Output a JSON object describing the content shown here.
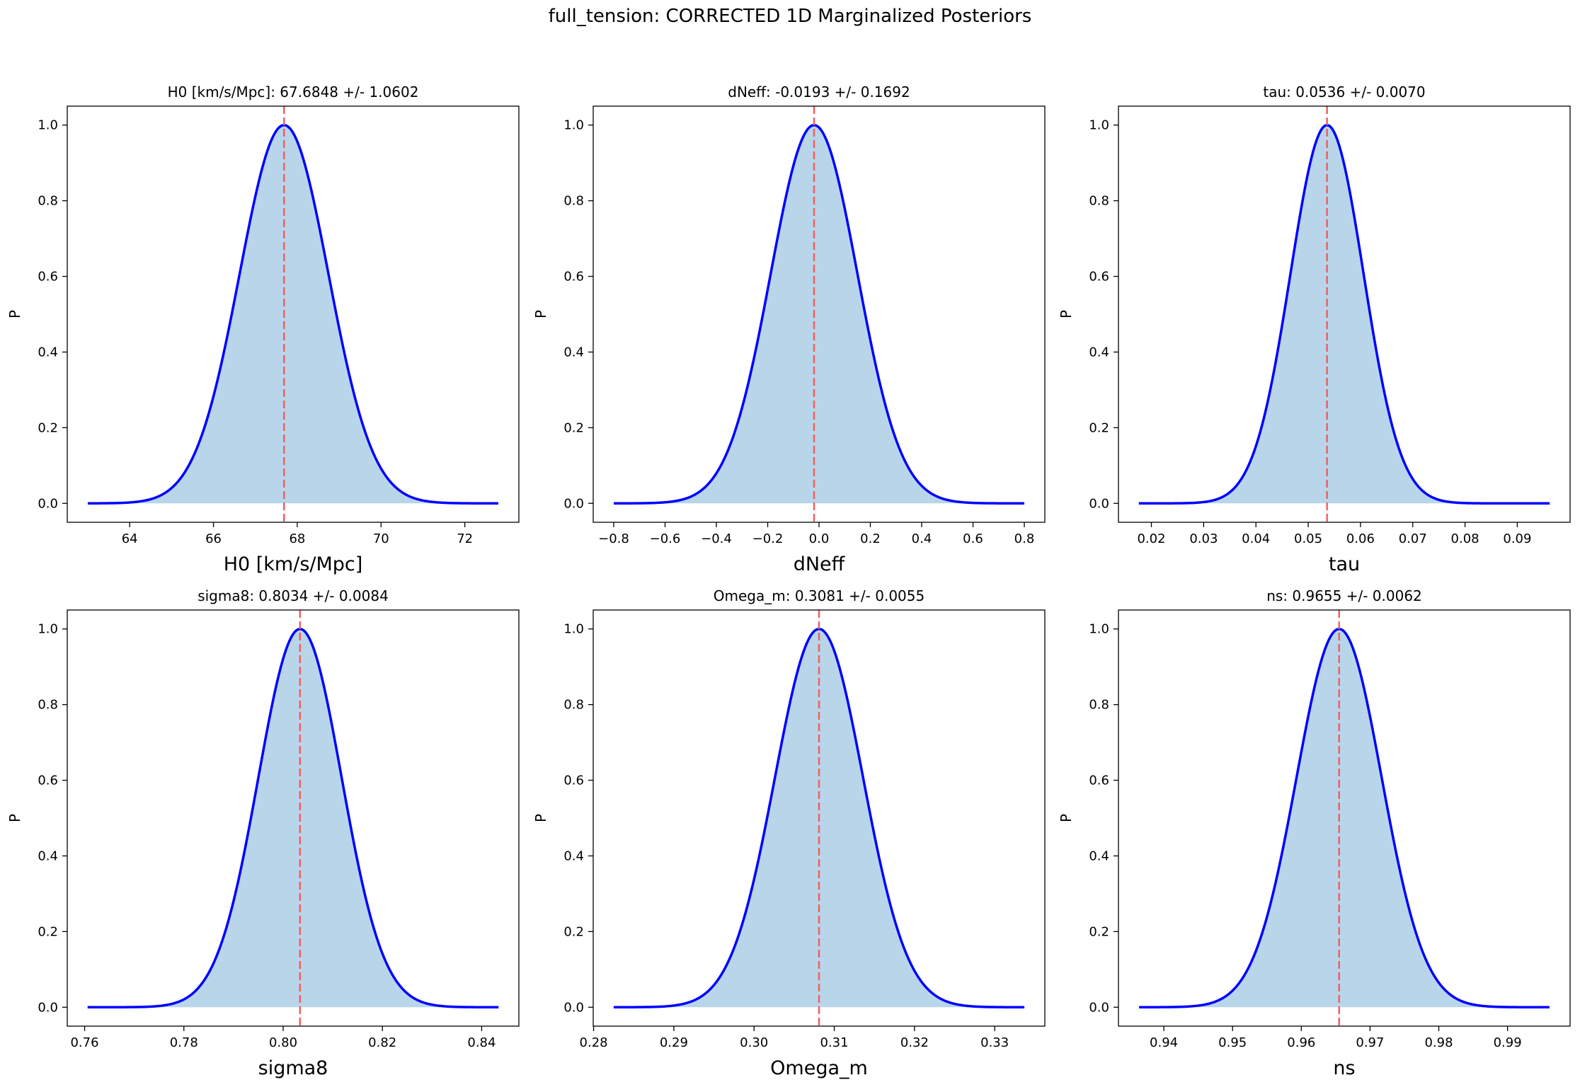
{
  "figure_title": "full_tension: CORRECTED 1D Marginalized Posteriors",
  "colors": {
    "curve": "#0000ff",
    "fill": "#b9d5ea",
    "mean_line": "#f06060",
    "axis": "#000000"
  },
  "chart_data": [
    {
      "type": "area",
      "title": "H0 [km/s/Mpc]: 67.6848 +/- 1.0602",
      "xlabel": "H0 [km/s/Mpc]",
      "ylabel": "P",
      "mean": 67.6848,
      "sigma": 1.0602,
      "x_range": [
        63.0,
        72.8
      ],
      "xlim": [
        62.51,
        73.29
      ],
      "ylim": [
        -0.05,
        1.05
      ],
      "xticks": [
        64,
        66,
        68,
        70,
        72
      ],
      "xtick_labels": [
        "64",
        "66",
        "68",
        "70",
        "72"
      ],
      "yticks": [
        0.0,
        0.2,
        0.4,
        0.6,
        0.8,
        1.0
      ],
      "ytick_labels": [
        "0.0",
        "0.2",
        "0.4",
        "0.6",
        "0.8",
        "1.0"
      ]
    },
    {
      "type": "area",
      "title": "dNeff: -0.0193 +/- 0.1692",
      "xlabel": "dNeff",
      "ylabel": "P",
      "mean": -0.0193,
      "sigma": 0.1692,
      "x_range": [
        -0.8,
        0.8
      ],
      "xlim": [
        -0.88,
        0.88
      ],
      "ylim": [
        -0.05,
        1.05
      ],
      "xticks": [
        -0.8,
        -0.6,
        -0.4,
        -0.2,
        0.0,
        0.2,
        0.4,
        0.6,
        0.8
      ],
      "xtick_labels": [
        "−0.8",
        "−0.6",
        "−0.4",
        "−0.2",
        "0.0",
        "0.2",
        "0.4",
        "0.6",
        "0.8"
      ],
      "yticks": [
        0.0,
        0.2,
        0.4,
        0.6,
        0.8,
        1.0
      ],
      "ytick_labels": [
        "0.0",
        "0.2",
        "0.4",
        "0.6",
        "0.8",
        "1.0"
      ]
    },
    {
      "type": "area",
      "title": "tau: 0.0536 +/- 0.0070",
      "xlabel": "tau",
      "ylabel": "P",
      "mean": 0.0536,
      "sigma": 0.007,
      "x_range": [
        0.0176,
        0.0962
      ],
      "xlim": [
        0.0137,
        0.1001
      ],
      "ylim": [
        -0.05,
        1.05
      ],
      "xticks": [
        0.02,
        0.03,
        0.04,
        0.05,
        0.06,
        0.07,
        0.08,
        0.09
      ],
      "xtick_labels": [
        "0.02",
        "0.03",
        "0.04",
        "0.05",
        "0.06",
        "0.07",
        "0.08",
        "0.09"
      ],
      "yticks": [
        0.0,
        0.2,
        0.4,
        0.6,
        0.8,
        1.0
      ],
      "ytick_labels": [
        "0.0",
        "0.2",
        "0.4",
        "0.6",
        "0.8",
        "1.0"
      ]
    },
    {
      "type": "area",
      "title": "sigma8: 0.8034 +/- 0.0084",
      "xlabel": "sigma8",
      "ylabel": "P",
      "mean": 0.8034,
      "sigma": 0.0084,
      "x_range": [
        0.7606,
        0.8434
      ],
      "xlim": [
        0.7565,
        0.8475
      ],
      "ylim": [
        -0.05,
        1.05
      ],
      "xticks": [
        0.76,
        0.78,
        0.8,
        0.82,
        0.84
      ],
      "xtick_labels": [
        "0.76",
        "0.78",
        "0.80",
        "0.82",
        "0.84"
      ],
      "yticks": [
        0.0,
        0.2,
        0.4,
        0.6,
        0.8,
        1.0
      ],
      "ytick_labels": [
        "0.0",
        "0.2",
        "0.4",
        "0.6",
        "0.8",
        "1.0"
      ]
    },
    {
      "type": "area",
      "title": "Omega_m: 0.3081 +/- 0.0055",
      "xlabel": "Omega_m",
      "ylabel": "P",
      "mean": 0.3081,
      "sigma": 0.0055,
      "x_range": [
        0.2825,
        0.3337
      ],
      "xlim": [
        0.27995,
        0.33625
      ],
      "ylim": [
        -0.05,
        1.05
      ],
      "xticks": [
        0.28,
        0.29,
        0.3,
        0.31,
        0.32,
        0.33
      ],
      "xtick_labels": [
        "0.28",
        "0.29",
        "0.30",
        "0.31",
        "0.32",
        "0.33"
      ],
      "yticks": [
        0.0,
        0.2,
        0.4,
        0.6,
        0.8,
        1.0
      ],
      "ytick_labels": [
        "0.0",
        "0.2",
        "0.4",
        "0.6",
        "0.8",
        "1.0"
      ]
    },
    {
      "type": "area",
      "title": "ns: 0.9655 +/- 0.0062",
      "xlabel": "ns",
      "ylabel": "P",
      "mean": 0.9655,
      "sigma": 0.0062,
      "x_range": [
        0.9364,
        0.9961
      ],
      "xlim": [
        0.9334,
        0.9991
      ],
      "ylim": [
        -0.05,
        1.05
      ],
      "xticks": [
        0.94,
        0.95,
        0.96,
        0.97,
        0.98,
        0.99
      ],
      "xtick_labels": [
        "0.94",
        "0.95",
        "0.96",
        "0.97",
        "0.98",
        "0.99"
      ],
      "yticks": [
        0.0,
        0.2,
        0.4,
        0.6,
        0.8,
        1.0
      ],
      "ytick_labels": [
        "0.0",
        "0.2",
        "0.4",
        "0.6",
        "0.8",
        "1.0"
      ]
    }
  ]
}
